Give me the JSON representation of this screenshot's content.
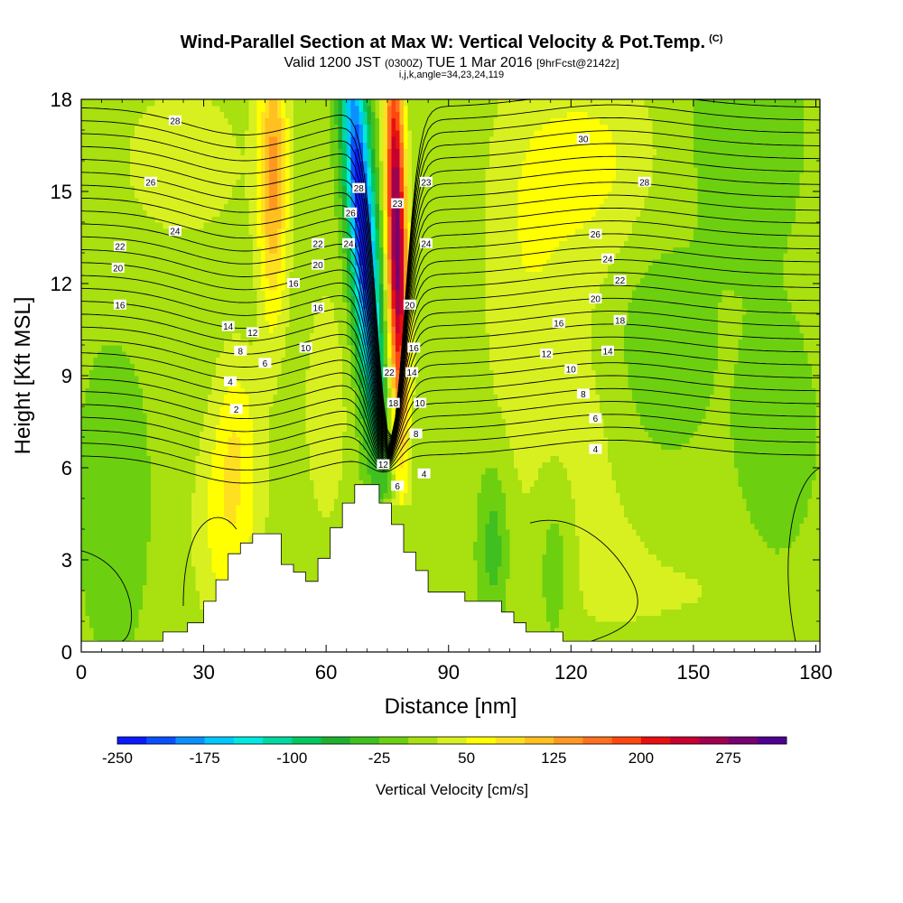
{
  "header": {
    "title": "Wind-Parallel Section at Max W: Vertical Velocity & Pot.Temp.",
    "copyright_mark": "(C)",
    "valid_prefix": "Valid 1200 JST",
    "utc_time": "(0300Z)",
    "date_text": "TUE 1 Mar 2016",
    "forecast_info": "[9hrFcst@2142z]",
    "params": "i,j,k,angle=34,23,24,119"
  },
  "chart_data": {
    "type": "heatmap",
    "title": "Wind-Parallel Section at Max W: Vertical Velocity & Pot.Temp.",
    "xlabel": "Distance [nm]",
    "ylabel": "Height [Kft MSL]",
    "xlim": [
      0,
      181
    ],
    "ylim": [
      0,
      18
    ],
    "xticks": [
      0,
      30,
      60,
      90,
      120,
      150,
      180
    ],
    "yticks": [
      0,
      3,
      6,
      9,
      12,
      15,
      18
    ],
    "grid": false,
    "colorbar": {
      "label": "Vertical Velocity [cm/s]",
      "levels": [
        -250,
        -225,
        -200,
        -175,
        -150,
        -125,
        -100,
        -75,
        -50,
        -25,
        0,
        25,
        50,
        75,
        100,
        125,
        150,
        175,
        200,
        225,
        250,
        275,
        300
      ],
      "tick_labels": [
        "-250",
        "-175",
        "-100",
        "-25",
        "50",
        "125",
        "200",
        "275"
      ],
      "colors": [
        "#0a1aff",
        "#0a50ff",
        "#0a90ff",
        "#00c8ff",
        "#00e8e0",
        "#00d8a0",
        "#00c860",
        "#20b030",
        "#40c020",
        "#6cd010",
        "#a8e010",
        "#d8f020",
        "#ffff00",
        "#ffe020",
        "#ffc020",
        "#ff9820",
        "#ff7020",
        "#ff4810",
        "#e81010",
        "#c80030",
        "#a00050",
        "#780070",
        "#500090"
      ]
    },
    "velocity_features": [
      {
        "name": "downdraft core",
        "x": 70,
        "y": 14,
        "w": -250
      },
      {
        "name": "updraft core",
        "x": 78,
        "y": 13,
        "w": 280
      },
      {
        "name": "upwind updraft band",
        "x": 47,
        "y": 15,
        "w": 120
      },
      {
        "name": "upper right ascent",
        "x": 128,
        "y": 15,
        "w": 50
      },
      {
        "name": "lee sinking",
        "x": 101,
        "y": 3,
        "w": -50
      },
      {
        "name": "upper right sinking",
        "x": 162,
        "y": 17,
        "w": -25
      }
    ],
    "contour_labels": [
      {
        "text": "28",
        "x": 23,
        "y": 17.3
      },
      {
        "text": "26",
        "x": 17,
        "y": 15.3
      },
      {
        "text": "24",
        "x": 23,
        "y": 13.7
      },
      {
        "text": "22",
        "x": 9.5,
        "y": 13.2
      },
      {
        "text": "20",
        "x": 9,
        "y": 12.5
      },
      {
        "text": "16",
        "x": 9.5,
        "y": 11.3
      },
      {
        "text": "14",
        "x": 36,
        "y": 10.6
      },
      {
        "text": "12",
        "x": 42,
        "y": 10.4
      },
      {
        "text": "8",
        "x": 39,
        "y": 9.8
      },
      {
        "text": "6",
        "x": 45,
        "y": 9.4
      },
      {
        "text": "4",
        "x": 36.5,
        "y": 8.8
      },
      {
        "text": "2",
        "x": 38,
        "y": 7.9
      },
      {
        "text": "22",
        "x": 58,
        "y": 13.3
      },
      {
        "text": "20",
        "x": 58,
        "y": 12.6
      },
      {
        "text": "16",
        "x": 52,
        "y": 12.0
      },
      {
        "text": "16",
        "x": 58,
        "y": 11.2
      },
      {
        "text": "10",
        "x": 55,
        "y": 9.9
      },
      {
        "text": "28",
        "x": 68,
        "y": 15.1
      },
      {
        "text": "26",
        "x": 66,
        "y": 14.3
      },
      {
        "text": "24",
        "x": 65.5,
        "y": 13.3
      },
      {
        "text": "23",
        "x": 84.5,
        "y": 15.3
      },
      {
        "text": "23",
        "x": 77.5,
        "y": 14.6
      },
      {
        "text": "24",
        "x": 84.5,
        "y": 13.3
      },
      {
        "text": "20",
        "x": 80.5,
        "y": 11.3
      },
      {
        "text": "16",
        "x": 81.5,
        "y": 9.9
      },
      {
        "text": "22",
        "x": 75.5,
        "y": 9.1
      },
      {
        "text": "14",
        "x": 81,
        "y": 9.1
      },
      {
        "text": "18",
        "x": 76.5,
        "y": 8.1
      },
      {
        "text": "10",
        "x": 83,
        "y": 8.1
      },
      {
        "text": "8",
        "x": 82,
        "y": 7.1
      },
      {
        "text": "12",
        "x": 74,
        "y": 6.1
      },
      {
        "text": "4",
        "x": 84,
        "y": 5.8
      },
      {
        "text": "6",
        "x": 77.5,
        "y": 5.4
      },
      {
        "text": "30",
        "x": 123,
        "y": 16.7
      },
      {
        "text": "28",
        "x": 138,
        "y": 15.3
      },
      {
        "text": "26",
        "x": 126,
        "y": 13.6
      },
      {
        "text": "24",
        "x": 129,
        "y": 12.8
      },
      {
        "text": "22",
        "x": 132,
        "y": 12.1
      },
      {
        "text": "20",
        "x": 126,
        "y": 11.5
      },
      {
        "text": "18",
        "x": 132,
        "y": 10.8
      },
      {
        "text": "16",
        "x": 117,
        "y": 10.7
      },
      {
        "text": "14",
        "x": 129,
        "y": 9.8
      },
      {
        "text": "12",
        "x": 114,
        "y": 9.7
      },
      {
        "text": "10",
        "x": 120,
        "y": 9.2
      },
      {
        "text": "8",
        "x": 123,
        "y": 8.4
      },
      {
        "text": "6",
        "x": 126,
        "y": 7.6
      },
      {
        "text": "4",
        "x": 126,
        "y": 6.6
      }
    ]
  },
  "colors": {
    "frame": "#000000",
    "terrain": "#ffffff",
    "background": "#ffffff"
  }
}
